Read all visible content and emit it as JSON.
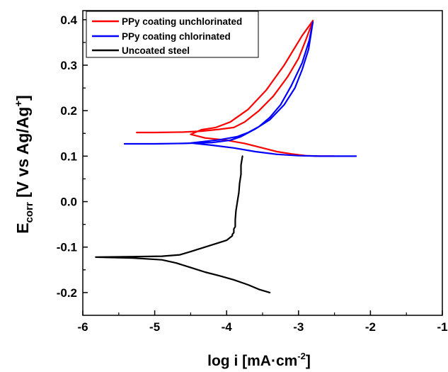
{
  "chart_data": {
    "type": "line",
    "xlabel": "log i [mA·cm",
    "xlabel_sup": "-2",
    "xlabel_end": "]",
    "ylabel_main": "E",
    "ylabel_sub": "corr",
    "ylabel_rest": " [V vs Ag/Ag",
    "ylabel_sup": "+",
    "ylabel_end": "]",
    "xlim": [
      -6,
      -1
    ],
    "ylim": [
      -0.25,
      0.42
    ],
    "x_ticks": [
      -6,
      -5,
      -4,
      -3,
      -2,
      -1
    ],
    "x_tick_labels": [
      "-6",
      "-5",
      "-4",
      "-3",
      "-2",
      "-1"
    ],
    "y_ticks": [
      -0.2,
      -0.1,
      0.0,
      0.1,
      0.2,
      0.3,
      0.4
    ],
    "y_tick_labels": [
      "-0.2",
      "-0.1",
      "0.0",
      "0.1",
      "0.2",
      "0.3",
      "0.4"
    ],
    "grid": false,
    "legend_position": "top-left",
    "series": [
      {
        "name": "PPy coating unchlorinated",
        "color": "#ff0000",
        "x": [
          -5.25,
          -5.0,
          -4.6,
          -4.35,
          -4.1,
          -3.9,
          -3.75,
          -3.55,
          -3.35,
          -3.15,
          -3.0,
          -2.9,
          -2.83,
          -2.8,
          -2.95,
          -3.2,
          -3.45,
          -3.7,
          -3.95,
          -4.15,
          -4.35,
          -4.5,
          -4.3,
          -4.0,
          -3.75,
          -3.5,
          -3.3,
          -3.1,
          -2.9,
          -2.7,
          -2.5
        ],
        "y": [
          0.152,
          0.152,
          0.153,
          0.155,
          0.159,
          0.163,
          0.175,
          0.2,
          0.232,
          0.275,
          0.315,
          0.355,
          0.385,
          0.398,
          0.365,
          0.3,
          0.245,
          0.203,
          0.175,
          0.163,
          0.158,
          0.148,
          0.14,
          0.135,
          0.128,
          0.118,
          0.11,
          0.105,
          0.101,
          0.1,
          0.1
        ]
      },
      {
        "name": "PPy coating chlorinated",
        "color": "#0000ff",
        "x": [
          -5.42,
          -5.0,
          -4.6,
          -4.2,
          -3.95,
          -3.8,
          -3.6,
          -3.4,
          -3.2,
          -3.05,
          -2.95,
          -2.86,
          -2.8,
          -2.85,
          -2.95,
          -3.1,
          -3.25,
          -3.4,
          -3.55,
          -3.7,
          -3.85,
          -4.1,
          -4.5,
          -4.2,
          -3.9,
          -3.6,
          -3.3,
          -3.0,
          -2.7,
          -2.4,
          -2.2
        ],
        "y": [
          0.127,
          0.127,
          0.128,
          0.13,
          0.135,
          0.143,
          0.16,
          0.18,
          0.213,
          0.25,
          0.29,
          0.335,
          0.395,
          0.355,
          0.305,
          0.255,
          0.213,
          0.185,
          0.165,
          0.152,
          0.143,
          0.136,
          0.129,
          0.124,
          0.118,
          0.11,
          0.104,
          0.101,
          0.1,
          0.1,
          0.1
        ]
      },
      {
        "name": "Uncoated steel",
        "color": "#000000",
        "x": [
          -3.78,
          -3.8,
          -3.8,
          -3.82,
          -3.83,
          -3.85,
          -3.87,
          -3.88,
          -3.88,
          -3.9,
          -3.9,
          -3.92,
          -3.92,
          -4.0,
          -4.1,
          -4.3,
          -4.5,
          -4.65,
          -4.9,
          -5.3,
          -5.82,
          -5.3,
          -4.9,
          -4.7,
          -4.5,
          -4.3,
          -4.1,
          -3.9,
          -3.7,
          -3.55,
          -3.4
        ],
        "y": [
          0.1,
          0.08,
          0.06,
          0.04,
          0.02,
          0.0,
          -0.02,
          -0.04,
          -0.055,
          -0.06,
          -0.068,
          -0.072,
          -0.075,
          -0.085,
          -0.09,
          -0.1,
          -0.11,
          -0.117,
          -0.12,
          -0.121,
          -0.122,
          -0.124,
          -0.128,
          -0.135,
          -0.145,
          -0.155,
          -0.163,
          -0.172,
          -0.183,
          -0.193,
          -0.2
        ]
      }
    ]
  }
}
